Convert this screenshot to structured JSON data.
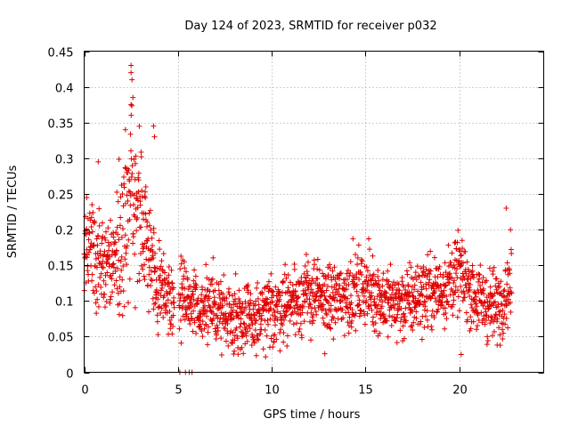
{
  "chart_data": {
    "type": "scatter",
    "title": "Day 124 of 2023, SRMTID for receiver p032",
    "xlabel": "GPS time / hours",
    "ylabel": "SRMTID / TECUs",
    "xlim": [
      0,
      24.5
    ],
    "ylim": [
      0,
      0.45
    ],
    "x_ticks": [
      0,
      5,
      10,
      15,
      20
    ],
    "x_tick_labels": [
      "0",
      "5",
      "10",
      "15",
      "20"
    ],
    "y_ticks": [
      0,
      0.05,
      0.1,
      0.15,
      0.2,
      0.25,
      0.3,
      0.35,
      0.4,
      0.45
    ],
    "y_tick_labels": [
      "0",
      "0.05",
      "0.1",
      "0.15",
      "0.2",
      "0.25",
      "0.3",
      "0.35",
      "0.4",
      "0.45"
    ],
    "grid": true,
    "marker": "+",
    "color": "#e00000",
    "series": [
      {
        "name": "SRMTID",
        "approx_envelope": {
          "x": [
            0,
            0.5,
            1,
            1.5,
            2,
            2.5,
            3,
            3.5,
            4,
            5,
            6,
            7,
            8,
            9,
            10,
            11,
            12,
            13,
            14,
            15,
            16,
            17,
            18,
            19,
            20,
            21,
            22,
            22.8
          ],
          "y": [
            0.17,
            0.17,
            0.15,
            0.16,
            0.19,
            0.24,
            0.21,
            0.16,
            0.12,
            0.1,
            0.095,
            0.09,
            0.08,
            0.07,
            0.085,
            0.1,
            0.11,
            0.1,
            0.11,
            0.12,
            0.1,
            0.095,
            0.11,
            0.115,
            0.14,
            0.1,
            0.09,
            0.13
          ]
        },
        "outliers": [
          {
            "x": 2.5,
            "y": 0.43
          },
          {
            "x": 2.5,
            "y": 0.42
          },
          {
            "x": 2.55,
            "y": 0.41
          },
          {
            "x": 2.6,
            "y": 0.385
          },
          {
            "x": 2.5,
            "y": 0.375
          },
          {
            "x": 2.2,
            "y": 0.34
          },
          {
            "x": 3.7,
            "y": 0.345
          },
          {
            "x": 3.75,
            "y": 0.33
          },
          {
            "x": 0.75,
            "y": 0.295
          },
          {
            "x": 22.5,
            "y": 0.23
          },
          {
            "x": 20.1,
            "y": 0.025
          },
          {
            "x": 5.1,
            "y": 0.0
          },
          {
            "x": 5.4,
            "y": 0.0
          },
          {
            "x": 5.6,
            "y": 0.0
          },
          {
            "x": 5.75,
            "y": 0.0
          }
        ]
      }
    ]
  }
}
